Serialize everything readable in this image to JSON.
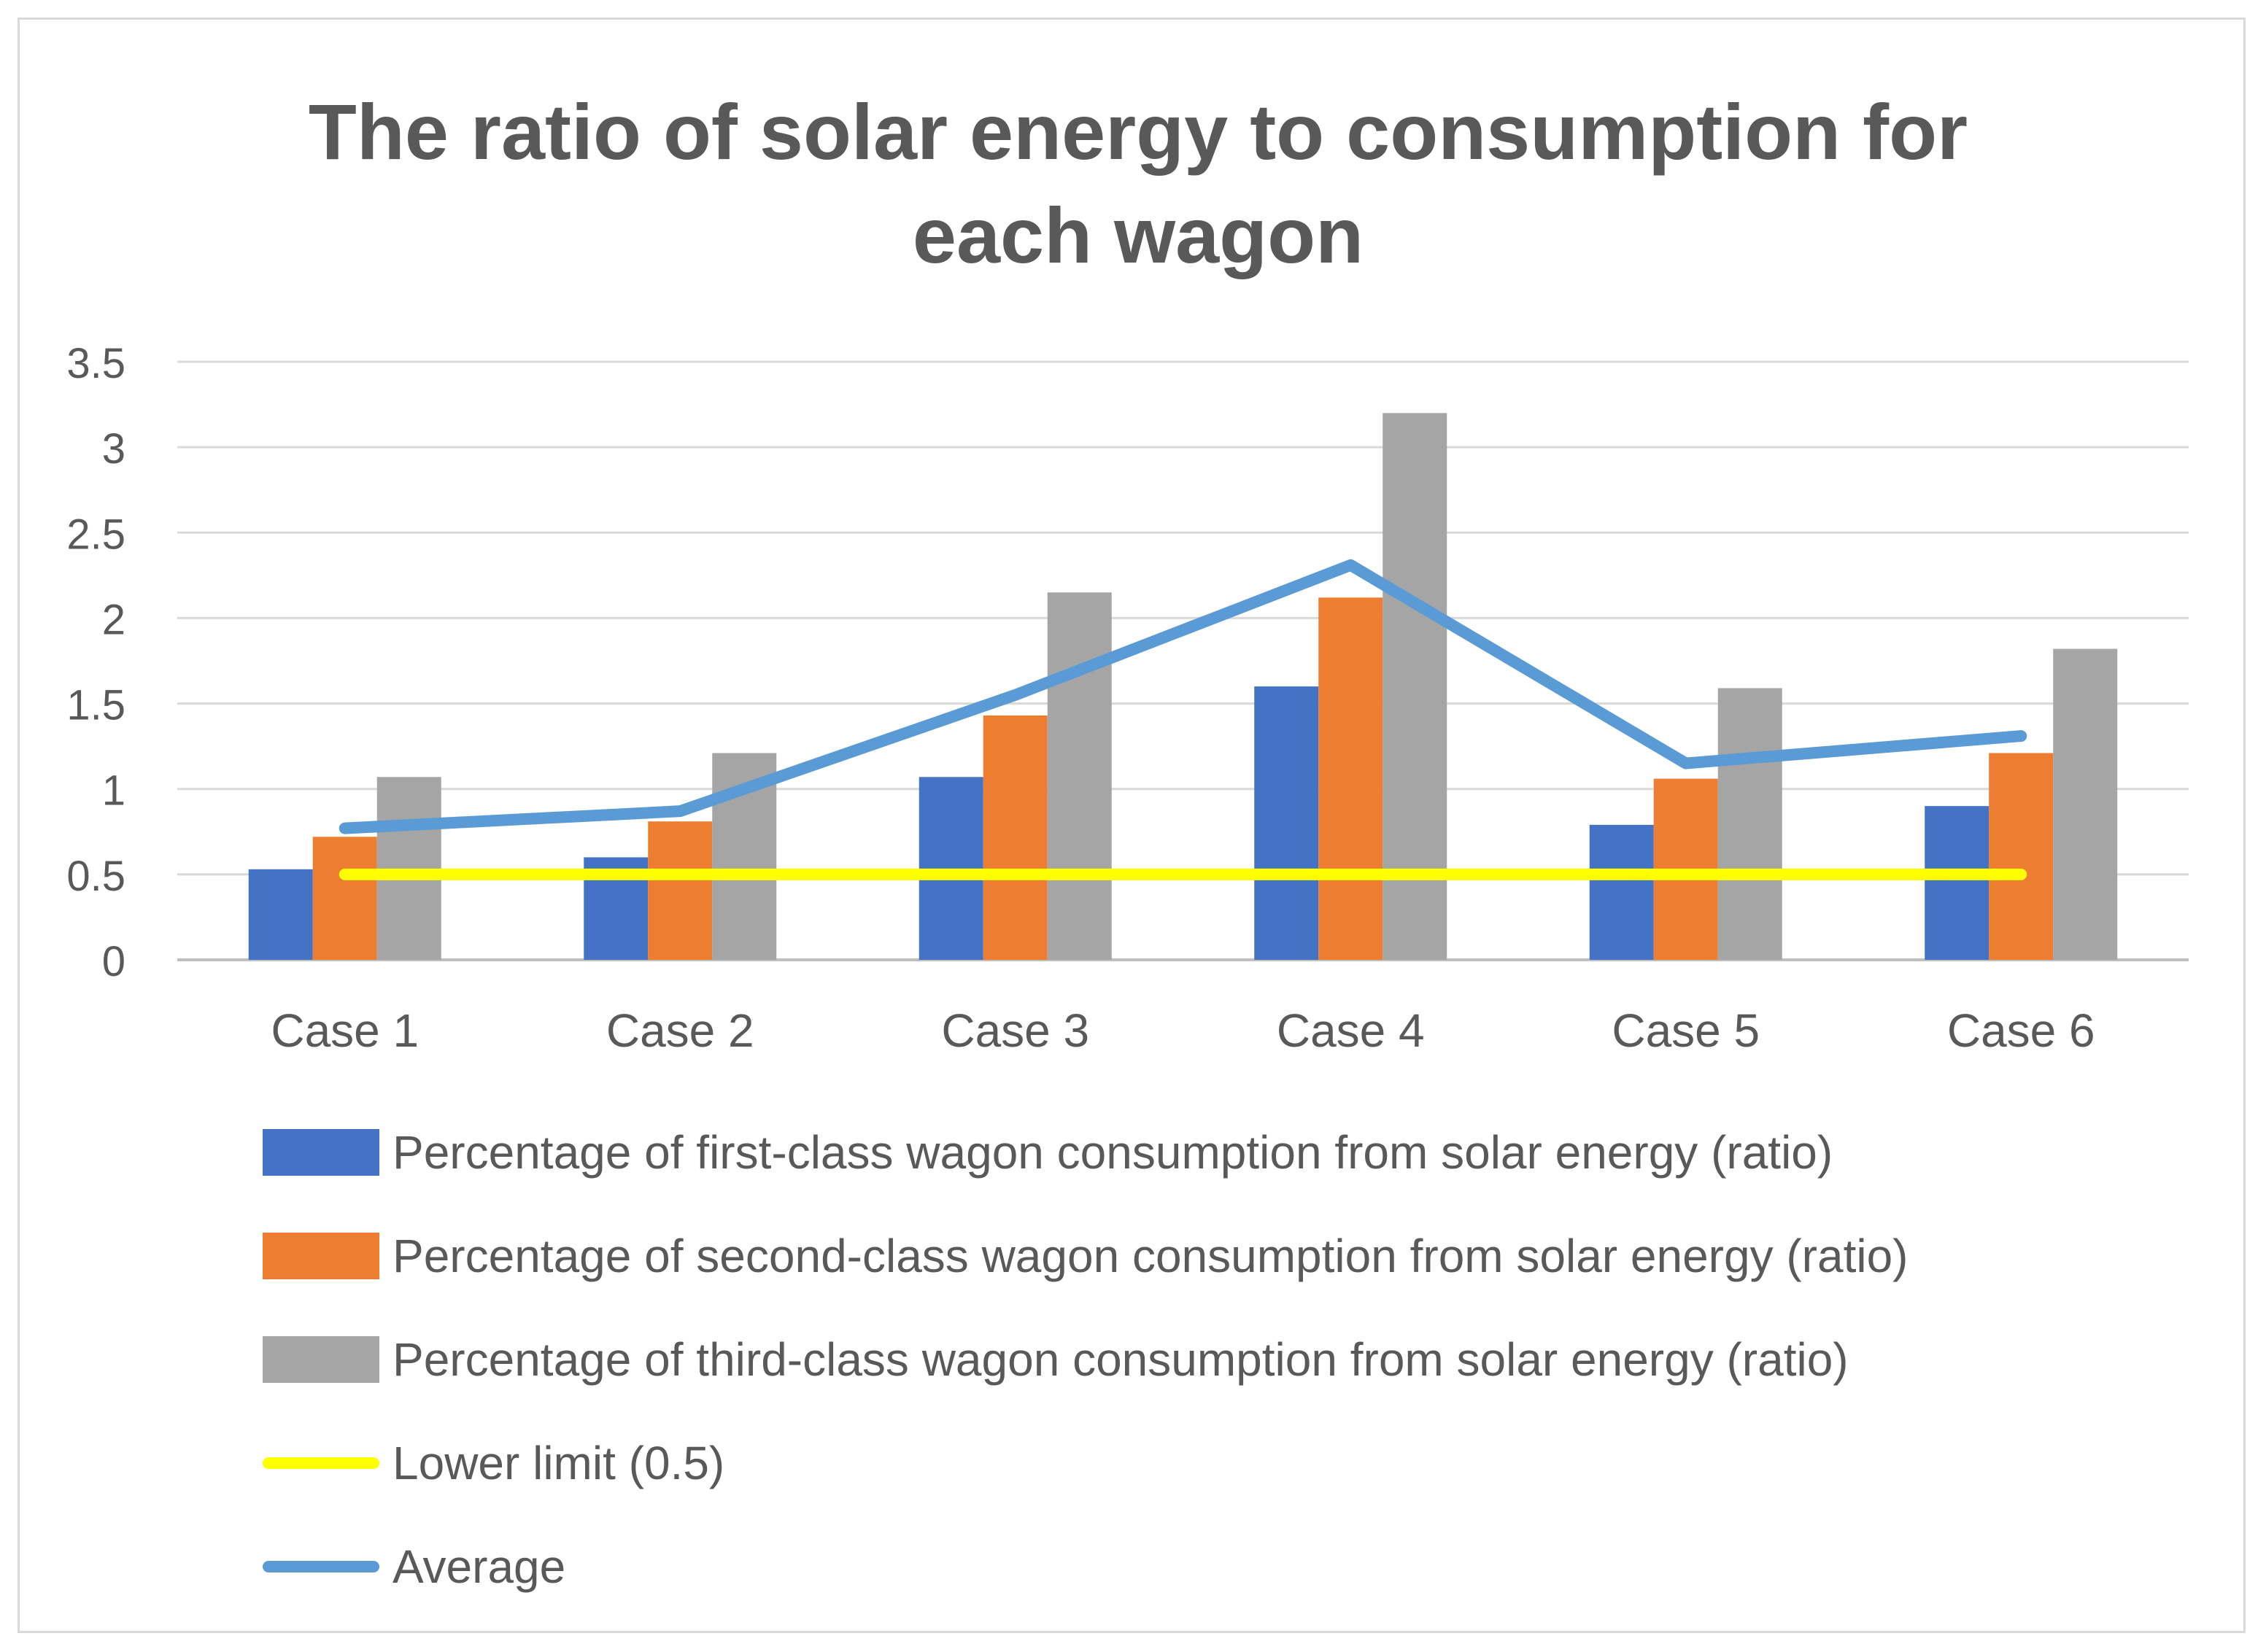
{
  "chart_data": {
    "type": "bar",
    "title": "The ratio of solar energy to consumption for\neach wagon",
    "categories": [
      "Case 1",
      "Case 2",
      "Case 3",
      "Case 4",
      "Case 5",
      "Case 6"
    ],
    "series": [
      {
        "name": "Percentage of first-class wagon consumption from solar energy (ratio)",
        "kind": "bar",
        "color": "#4472C4",
        "values": [
          0.53,
          0.6,
          1.07,
          1.6,
          0.79,
          0.9
        ]
      },
      {
        "name": "Percentage of second-class wagon consumption from solar energy (ratio)",
        "kind": "bar",
        "color": "#ED7D31",
        "values": [
          0.72,
          0.81,
          1.43,
          2.12,
          1.06,
          1.21
        ]
      },
      {
        "name": "Percentage of third-class wagon consumption from solar energy (ratio)",
        "kind": "bar",
        "color": "#A5A5A5",
        "values": [
          1.07,
          1.21,
          2.15,
          3.2,
          1.59,
          1.82
        ]
      },
      {
        "name": "Lower limit (0.5)",
        "kind": "line",
        "color": "#FFFF00",
        "values": [
          0.5,
          0.5,
          0.5,
          0.5,
          0.5,
          0.5
        ]
      },
      {
        "name": "Average",
        "kind": "line",
        "color": "#5B9BD5",
        "values": [
          0.77,
          0.87,
          1.55,
          2.31,
          1.15,
          1.31
        ]
      }
    ],
    "yticks": [
      "0",
      "0.5",
      "1",
      "1.5",
      "2",
      "2.5",
      "3",
      "3.5"
    ],
    "ylim": [
      0,
      3.5
    ],
    "xlabel": "",
    "ylabel": "",
    "grid": true,
    "legend": "bottom"
  }
}
